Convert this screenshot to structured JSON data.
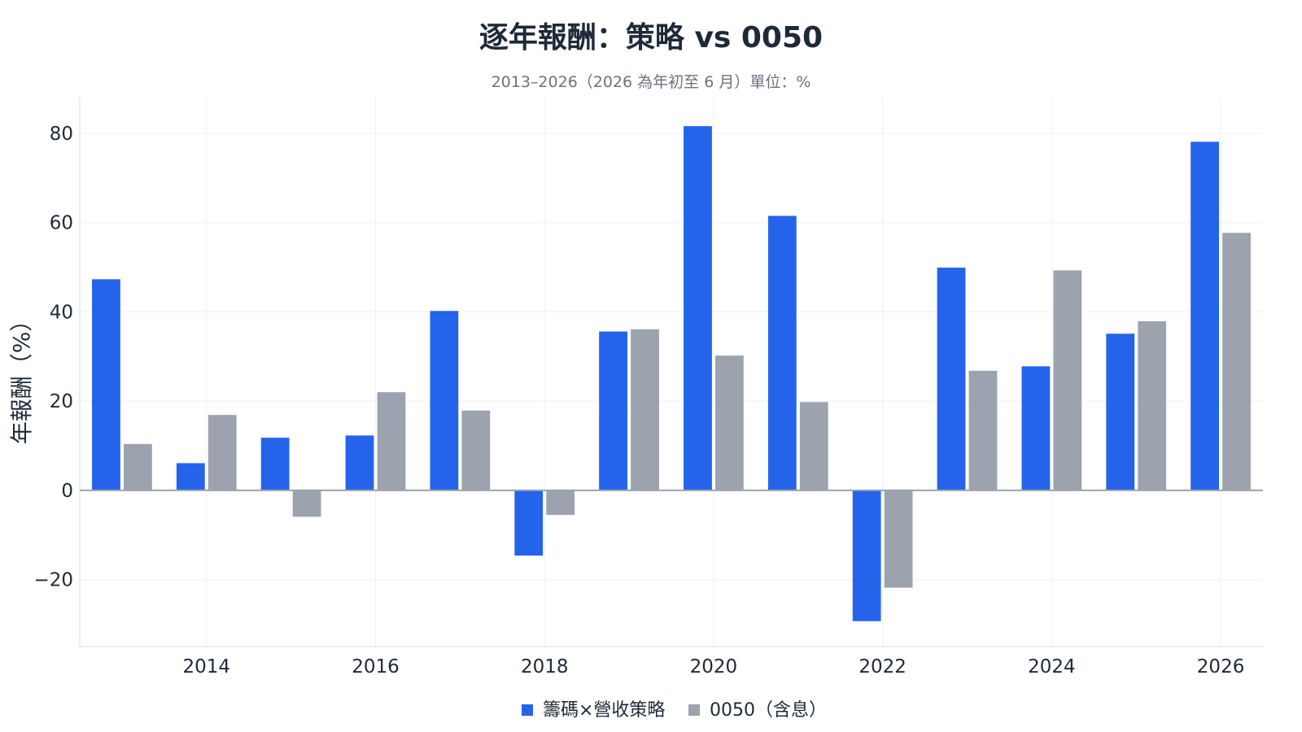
{
  "chart_data": {
    "type": "bar",
    "title": "逐年報酬：策略 vs 0050",
    "subtitle": "2013–2026（2026 為年初至 6 月）單位：%",
    "xlabel": "",
    "ylabel": "年報酬（%）",
    "categories": [
      2013,
      2014,
      2015,
      2016,
      2017,
      2018,
      2019,
      2020,
      2021,
      2022,
      2023,
      2024,
      2025,
      2026
    ],
    "x_ticks": [
      2014,
      2016,
      2018,
      2020,
      2022,
      2024,
      2026
    ],
    "x_range": [
      2012.5,
      2026.5
    ],
    "ylim": [
      -35,
      88
    ],
    "y_ticks": [
      -20,
      0,
      20,
      40,
      60,
      80
    ],
    "y_tick_labels": [
      "−20",
      "0",
      "20",
      "40",
      "60",
      "80"
    ],
    "grid": true,
    "legend_position": "bottom-center",
    "series": [
      {
        "name": "籌碼×營收策略",
        "color": "#2563eb",
        "values": [
          47.3,
          6.1,
          11.8,
          12.3,
          40.2,
          -14.6,
          35.6,
          81.6,
          61.5,
          -29.3,
          49.9,
          27.8,
          35.1,
          78.1
        ]
      },
      {
        "name": "0050（含息）",
        "color": "#9ca3af",
        "values": [
          10.4,
          16.9,
          -5.9,
          22.0,
          17.9,
          -5.5,
          36.1,
          30.2,
          19.8,
          -21.8,
          26.8,
          49.3,
          37.9,
          57.7
        ]
      }
    ]
  }
}
